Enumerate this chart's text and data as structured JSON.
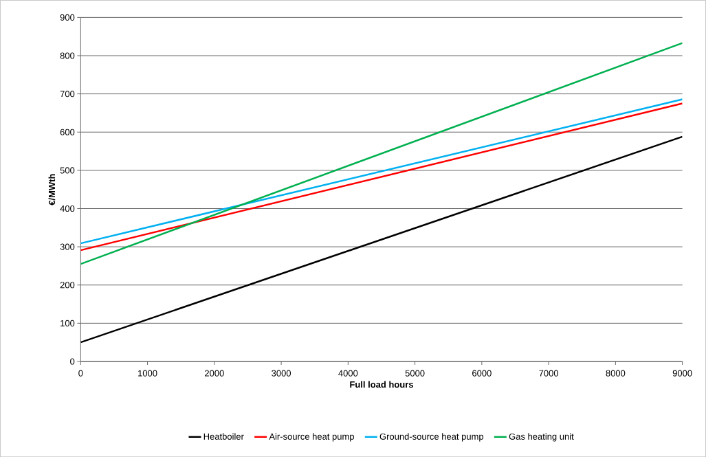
{
  "chart_data": {
    "type": "line",
    "xlabel": "Full load hours",
    "ylabel": "€/MWth",
    "x": [
      0,
      9000
    ],
    "series": [
      {
        "name": "Heatboiler",
        "color": "#000000",
        "values": [
          50,
          588
        ]
      },
      {
        "name": "Air-source heat pump",
        "color": "#ff0000",
        "values": [
          291,
          675
        ]
      },
      {
        "name": "Ground-source heat pump",
        "color": "#00b0f0",
        "values": [
          309,
          686
        ]
      },
      {
        "name": "Gas heating unit",
        "color": "#00b050",
        "values": [
          255,
          833
        ]
      }
    ],
    "xlim": [
      0,
      9000
    ],
    "xticks": [
      0,
      1000,
      2000,
      3000,
      4000,
      5000,
      6000,
      7000,
      8000,
      9000
    ],
    "ylim": [
      0,
      900
    ],
    "yticks": [
      0,
      100,
      200,
      300,
      400,
      500,
      600,
      700,
      800,
      900
    ],
    "grid": "y",
    "legend": "bottom",
    "marker": "none",
    "line_style": "solid"
  }
}
